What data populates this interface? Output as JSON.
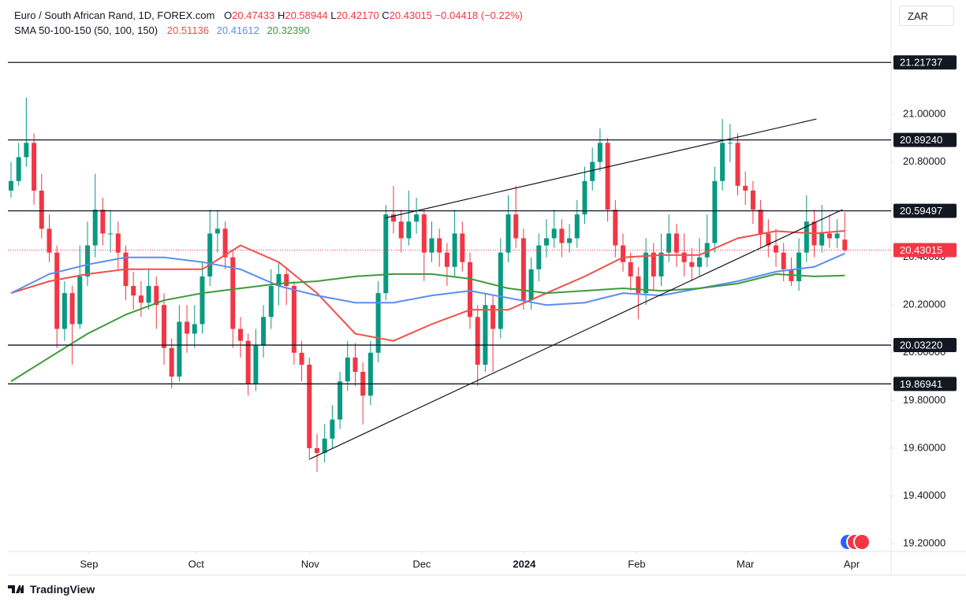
{
  "chart_data": {
    "type": "candlestick",
    "title": "Euro / South African Rand, 1D, FOREX.com",
    "ohlc_letters": [
      "O",
      "H",
      "L",
      "C"
    ],
    "last_bar_labels": [
      "20.47433",
      "20.58944",
      "20.42170",
      "20.43015"
    ],
    "change_label": "−0.04418 (−0.22%)",
    "indicator": "SMA 50-100-150 (50, 100, 150)",
    "currency": "ZAR",
    "brand": "TradingView",
    "up_color": "#089981",
    "down_color": "#f23645",
    "open": [
      20.68,
      20.72,
      20.82,
      20.88,
      20.68,
      20.52,
      20.42,
      20.1,
      20.25,
      20.12,
      20.32,
      20.45,
      20.6,
      20.5,
      20.5,
      20.42,
      20.28,
      20.24,
      20.21,
      20.28,
      20.2,
      20.02,
      19.9,
      20.13,
      20.08,
      20.12,
      20.32,
      20.5,
      20.52,
      20.4,
      20.1,
      20.05,
      19.87,
      20.03,
      20.15,
      20.28,
      20.33,
      20.28,
      20.0,
      19.95,
      19.6,
      19.58,
      19.64,
      19.72,
      19.88,
      19.98,
      19.92,
      19.82,
      20.0,
      20.25,
      20.58,
      20.55,
      20.48,
      20.55,
      20.58,
      20.42,
      20.48,
      20.42,
      20.36,
      20.5,
      20.38,
      20.15,
      19.95,
      20.2,
      20.1,
      20.42,
      20.58,
      20.48,
      20.22,
      20.35,
      20.45,
      20.48,
      20.52,
      20.46,
      20.48,
      20.58,
      20.72,
      20.8,
      20.88,
      20.6,
      20.45,
      20.38,
      20.32,
      20.25,
      20.42,
      20.32,
      20.42,
      20.5,
      20.42,
      20.38,
      20.36,
      20.4,
      20.46,
      20.72,
      20.88,
      20.88,
      20.7,
      20.68,
      20.6,
      20.5,
      20.45,
      20.42,
      20.35,
      20.3,
      20.42,
      20.55,
      20.45,
      20.5,
      20.48,
      20.47433
    ],
    "high": [
      20.8,
      20.88,
      21.07,
      20.92,
      20.75,
      20.58,
      20.45,
      20.3,
      20.28,
      20.45,
      20.55,
      20.75,
      20.65,
      20.6,
      20.55,
      20.45,
      20.34,
      20.3,
      20.35,
      20.32,
      20.25,
      20.06,
      20.2,
      20.2,
      20.2,
      20.38,
      20.6,
      20.6,
      20.55,
      20.43,
      20.15,
      20.08,
      20.1,
      20.2,
      20.35,
      20.38,
      20.36,
      20.3,
      20.05,
      19.98,
      19.66,
      19.7,
      19.78,
      19.92,
      20.05,
      20.04,
      19.96,
      20.05,
      20.3,
      20.62,
      20.7,
      20.6,
      20.68,
      20.65,
      20.6,
      20.55,
      20.52,
      20.46,
      20.6,
      20.55,
      20.42,
      20.2,
      20.25,
      20.24,
      20.48,
      20.66,
      20.7,
      20.52,
      20.4,
      20.5,
      20.56,
      20.6,
      20.56,
      20.54,
      20.64,
      20.78,
      20.86,
      20.94,
      20.9,
      20.64,
      20.5,
      20.42,
      20.36,
      20.48,
      20.46,
      20.5,
      20.58,
      20.54,
      20.5,
      20.44,
      20.48,
      20.58,
      20.78,
      20.98,
      20.96,
      20.92,
      20.76,
      20.72,
      20.64,
      20.56,
      20.52,
      20.46,
      20.4,
      20.48,
      20.66,
      20.6,
      20.62,
      20.58,
      20.56,
      20.58944
    ],
    "low": [
      20.65,
      20.7,
      20.78,
      20.62,
      20.48,
      20.38,
      20.02,
      20.05,
      19.95,
      20.1,
      20.28,
      20.4,
      20.45,
      20.42,
      20.35,
      20.22,
      20.18,
      20.15,
      20.18,
      20.1,
      19.95,
      19.85,
      19.88,
      20.0,
      20.02,
      20.08,
      20.28,
      20.42,
      20.35,
      20.02,
      19.98,
      19.82,
      19.84,
      19.98,
      20.1,
      20.2,
      20.2,
      19.95,
      19.88,
      19.55,
      19.5,
      19.54,
      19.6,
      19.68,
      19.84,
      19.86,
      19.7,
      19.78,
      19.96,
      20.22,
      20.5,
      20.42,
      20.45,
      20.5,
      20.3,
      20.38,
      20.36,
      20.28,
      20.32,
      20.34,
      20.1,
      19.86,
      19.92,
      19.92,
      20.06,
      20.38,
      20.44,
      20.18,
      20.18,
      20.3,
      20.4,
      20.44,
      20.4,
      20.42,
      20.44,
      20.54,
      20.68,
      20.76,
      20.55,
      20.4,
      20.34,
      20.26,
      20.14,
      20.2,
      20.26,
      20.28,
      20.38,
      20.36,
      20.32,
      20.3,
      20.32,
      20.36,
      20.42,
      20.68,
      20.8,
      20.66,
      20.62,
      20.54,
      20.44,
      20.4,
      20.36,
      20.3,
      20.28,
      20.26,
      20.38,
      20.4,
      20.42,
      20.44,
      20.44,
      20.4217
    ],
    "close": [
      20.72,
      20.82,
      20.88,
      20.68,
      20.52,
      20.42,
      20.1,
      20.25,
      20.12,
      20.32,
      20.45,
      20.6,
      20.5,
      20.5,
      20.42,
      20.28,
      20.24,
      20.21,
      20.28,
      20.2,
      20.02,
      19.9,
      20.13,
      20.08,
      20.12,
      20.32,
      20.5,
      20.52,
      20.4,
      20.1,
      20.05,
      19.87,
      20.03,
      20.15,
      20.28,
      20.33,
      20.28,
      20.0,
      19.95,
      19.6,
      19.58,
      19.64,
      19.72,
      19.88,
      19.98,
      19.92,
      19.82,
      20.0,
      20.25,
      20.58,
      20.55,
      20.48,
      20.55,
      20.58,
      20.42,
      20.48,
      20.42,
      20.36,
      20.5,
      20.38,
      20.15,
      19.95,
      20.2,
      20.1,
      20.42,
      20.58,
      20.48,
      20.22,
      20.35,
      20.45,
      20.48,
      20.52,
      20.46,
      20.48,
      20.58,
      20.72,
      20.8,
      20.88,
      20.6,
      20.45,
      20.38,
      20.32,
      20.25,
      20.42,
      20.32,
      20.42,
      20.5,
      20.42,
      20.38,
      20.36,
      20.4,
      20.46,
      20.72,
      20.88,
      20.88,
      20.7,
      20.68,
      20.6,
      20.5,
      20.45,
      20.42,
      20.35,
      20.3,
      20.42,
      20.55,
      20.45,
      20.5,
      20.48,
      20.5,
      20.43015
    ],
    "sma": [
      {
        "color": "#f0504a",
        "value_label": "20.51136",
        "x": [
          0,
          5,
          10,
          15,
          20,
          25,
          30,
          35,
          40,
          45,
          50,
          55,
          60,
          65,
          70,
          75,
          80,
          85,
          90,
          95,
          100,
          105,
          109
        ],
        "values": [
          20.25,
          20.3,
          20.33,
          20.35,
          20.35,
          20.35,
          20.45,
          20.38,
          20.25,
          20.08,
          20.05,
          20.12,
          20.18,
          20.18,
          20.25,
          20.32,
          20.4,
          20.41,
          20.41,
          20.48,
          20.51,
          20.5,
          20.51136
        ]
      },
      {
        "color": "#5b8def",
        "value_label": "20.41612",
        "x": [
          0,
          5,
          10,
          15,
          20,
          25,
          30,
          35,
          40,
          45,
          50,
          55,
          60,
          65,
          70,
          75,
          80,
          85,
          90,
          95,
          100,
          105,
          109
        ],
        "values": [
          20.25,
          20.33,
          20.37,
          20.4,
          20.4,
          20.38,
          20.35,
          20.28,
          20.24,
          20.21,
          20.21,
          20.24,
          20.26,
          20.23,
          20.2,
          20.21,
          20.25,
          20.24,
          20.27,
          20.3,
          20.34,
          20.36,
          20.41612
        ]
      },
      {
        "color": "#3d9a3d",
        "value_label": "20.32390",
        "x": [
          0,
          5,
          10,
          15,
          20,
          25,
          30,
          35,
          40,
          45,
          50,
          55,
          60,
          65,
          70,
          75,
          80,
          85,
          90,
          95,
          100,
          105,
          109
        ],
        "values": [
          19.88,
          19.98,
          20.08,
          20.16,
          20.22,
          20.25,
          20.27,
          20.29,
          20.3,
          20.32,
          20.33,
          20.33,
          20.31,
          20.27,
          20.25,
          20.26,
          20.27,
          20.26,
          20.27,
          20.29,
          20.33,
          20.32,
          20.3239
        ]
      }
    ],
    "levels": [
      {
        "value": 21.21737,
        "label": "21.21737"
      },
      {
        "value": 20.8924,
        "label": "20.89240"
      },
      {
        "value": 20.59497,
        "label": "20.59497"
      },
      {
        "value": 20.0322,
        "label": "20.03220"
      },
      {
        "value": 19.86941,
        "label": "19.86941"
      }
    ],
    "trendlines": [
      {
        "x": [
          39.1,
          108.7
        ],
        "y": [
          19.555,
          20.6
        ]
      },
      {
        "x": [
          48.9,
          105.3
        ],
        "y": [
          20.565,
          20.98
        ]
      }
    ],
    "xlim": [
      -0.41,
      115.05
    ],
    "ylim": [
      19.167,
      21.479
    ],
    "yticks": [
      {
        "value": 19.2,
        "label": "19.20000"
      },
      {
        "value": 19.4,
        "label": "19.40000"
      },
      {
        "value": 19.6,
        "label": "19.60000"
      },
      {
        "value": 19.8,
        "label": "19.80000"
      },
      {
        "value": 20.0,
        "label": "20.00000"
      },
      {
        "value": 20.2,
        "label": "20.20000"
      },
      {
        "value": 20.4,
        "label": "20.40000"
      },
      {
        "value": 20.6,
        "label": "20.60000"
      },
      {
        "value": 20.8,
        "label": "20.80000"
      },
      {
        "value": 21.0,
        "label": "21.00000"
      }
    ],
    "xticks": [
      {
        "value": 10.2,
        "label": "Sep"
      },
      {
        "value": 24.2,
        "label": "Oct"
      },
      {
        "value": 39.1,
        "label": "Nov"
      },
      {
        "value": 53.7,
        "label": "Dec"
      },
      {
        "value": 67.1,
        "label": "2024"
      },
      {
        "value": 81.8,
        "label": "Feb"
      },
      {
        "value": 96.0,
        "label": "Mar"
      },
      {
        "value": 109.9,
        "label": "Apr"
      }
    ]
  }
}
